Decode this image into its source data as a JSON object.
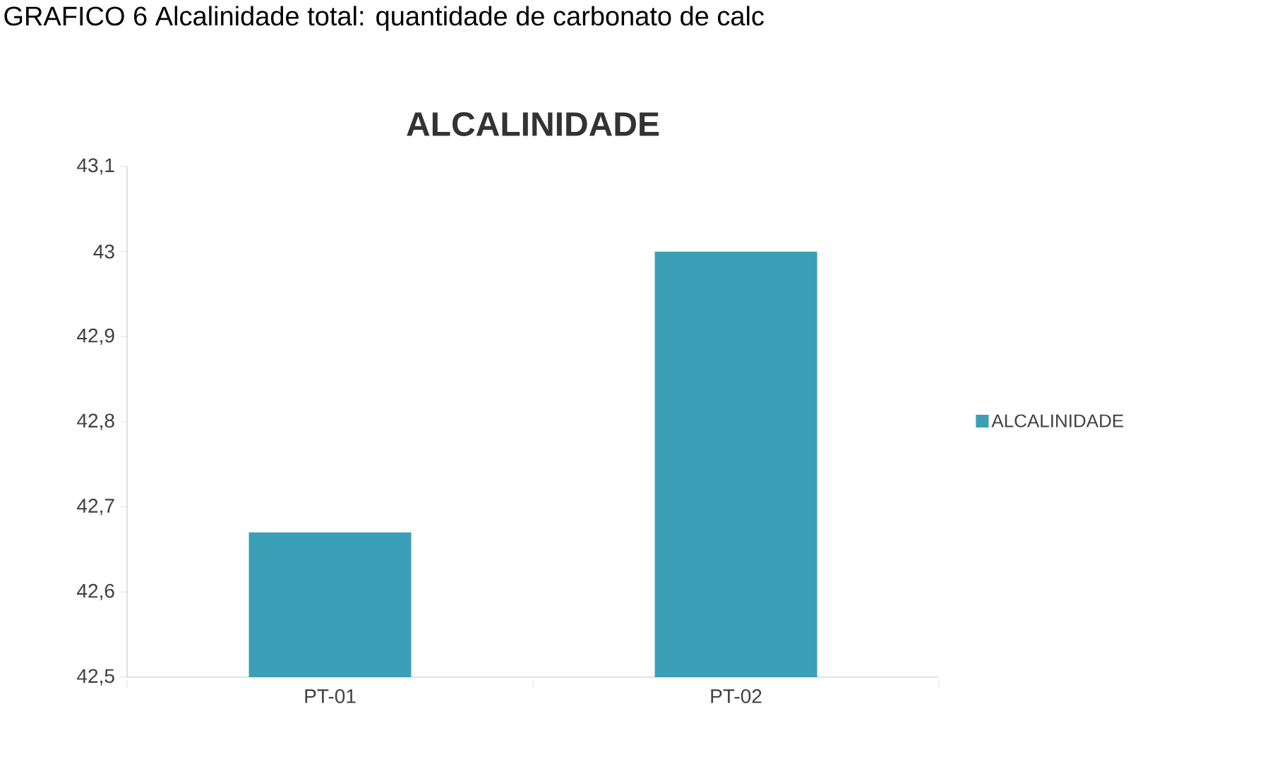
{
  "chart_data": {
    "type": "bar",
    "title": "ALCALINIDADE",
    "annotations": [
      "GRAFICO 6 Alcalinidade total: quantidade de carbonato de calc"
    ],
    "categories": [
      "PT-01",
      "PT-02"
    ],
    "series": [
      {
        "name": "ALCALINIDADE",
        "color": "#3b9fb8",
        "values": [
          42.67,
          43.0
        ]
      }
    ],
    "ylim": [
      42.5,
      43.1
    ],
    "yticks": [
      {
        "value": 42.5,
        "label": "42,5"
      },
      {
        "value": 42.6,
        "label": "42,6"
      },
      {
        "value": 42.7,
        "label": "42,7"
      },
      {
        "value": 42.8,
        "label": "42,8"
      },
      {
        "value": 42.9,
        "label": "42,9"
      },
      {
        "value": 43,
        "label": "43"
      },
      {
        "value": 43.1,
        "label": "43,1"
      }
    ],
    "grid": false,
    "legend": "right"
  }
}
